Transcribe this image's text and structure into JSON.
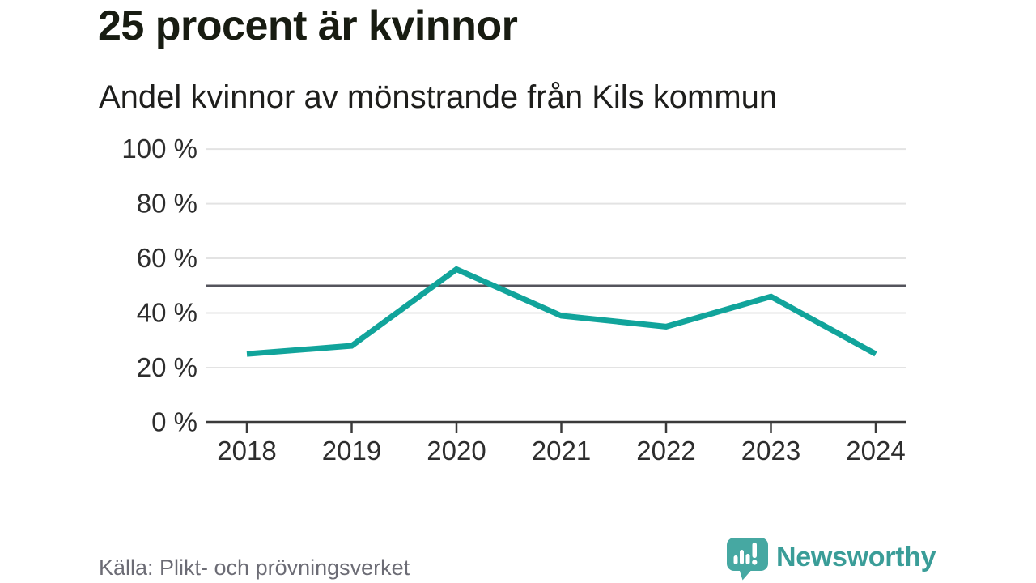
{
  "header": {
    "title": "25 procent är kvinnor",
    "subtitle": "Andel kvinnor av mönstrande från Kils kommun"
  },
  "chart_data": {
    "type": "line",
    "title": "25 procent är kvinnor",
    "subtitle": "Andel kvinnor av mönstrande från Kils kommun",
    "x": [
      "2018",
      "2019",
      "2020",
      "2021",
      "2022",
      "2023",
      "2024"
    ],
    "series": [
      {
        "name": "Andel kvinnor av mönstrande",
        "values": [
          25,
          28,
          56,
          39,
          35,
          46,
          25
        ]
      }
    ],
    "unit": "%",
    "xlabel": "",
    "ylabel": "",
    "ylim": [
      0,
      100
    ],
    "y_ticks": [
      {
        "value": 0,
        "label": "0 %"
      },
      {
        "value": 20,
        "label": "20 %"
      },
      {
        "value": 40,
        "label": "40 %"
      },
      {
        "value": 60,
        "label": "60 %"
      },
      {
        "value": 80,
        "label": "80 %"
      },
      {
        "value": 100,
        "label": "100 %"
      }
    ],
    "reference_line": 50,
    "grid": "horizontal",
    "legend": "none",
    "colors": {
      "line": "#11a49b",
      "grid": "#e3e3e3",
      "reference_line": "#54545c",
      "axis": "#3a3a3a",
      "tick_label": "#2d2d2d"
    }
  },
  "footer": {
    "source": "Källa: Plikt- och prövningsverket",
    "brand": "Newsworthy",
    "brand_color": "#3a9d98",
    "logo_color": "#46a8a2",
    "logo_mark_color": "#ffffff"
  }
}
